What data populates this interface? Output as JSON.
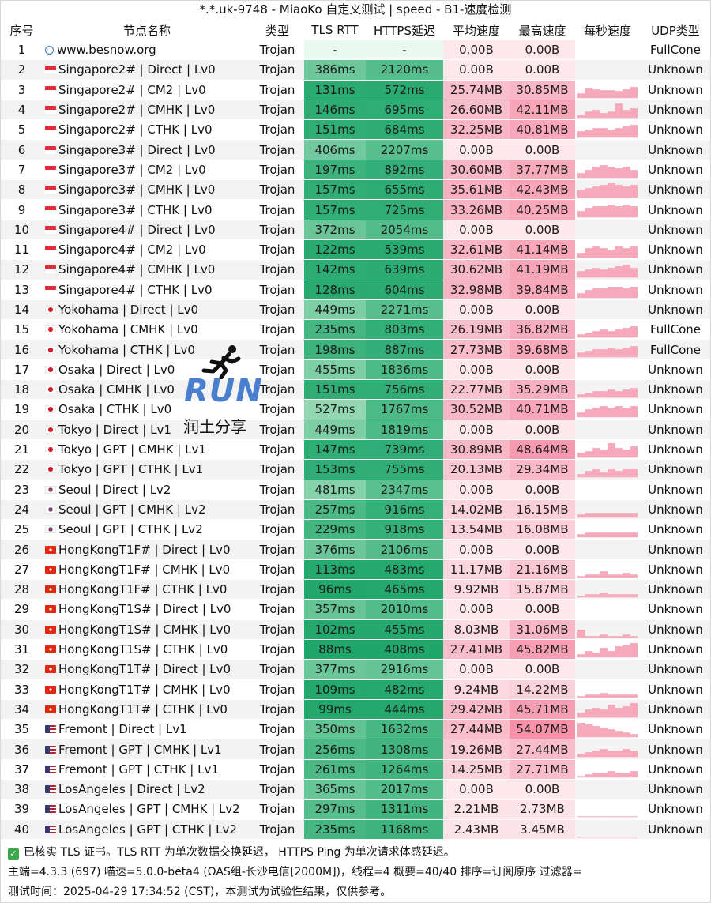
{
  "title": "*.*.uk-9748 - MiaoKo 自定义测试 | speed - B1-速度检测",
  "headers": [
    "序号",
    "节点名称",
    "类型",
    "TLS RTT",
    "HTTPS延迟",
    "平均速度",
    "最高速度",
    "每秒速度",
    "UDP类型"
  ],
  "icons": {
    "globe": "globe-icon",
    "check": "check-icon",
    "runner": "runner-icon"
  },
  "colors": {
    "green_light": "#9fdcba",
    "green_dark": "#1fa66b",
    "pink_light": "#fde8ec",
    "pink_dark": "#f592a8",
    "spark": "#f6a9ba"
  },
  "rows": [
    {
      "no": "1",
      "flag": "globe",
      "name": "www.besnow.org",
      "type": "Trojan",
      "rtt": "-",
      "https": "-",
      "avg": "0.00B",
      "max": "0.00B",
      "udp": "FullCone",
      "spark": []
    },
    {
      "no": "2",
      "flag": "sg",
      "name": "Singapore2# | Direct | Lv0",
      "type": "Trojan",
      "rtt": "386ms",
      "https": "2120ms",
      "avg": "0.00B",
      "max": "0.00B",
      "udp": "Unknown",
      "spark": []
    },
    {
      "no": "3",
      "flag": "sg",
      "name": "Singapore2# | CM2 | Lv0",
      "type": "Trojan",
      "rtt": "131ms",
      "https": "572ms",
      "avg": "25.74MB",
      "max": "30.85MB",
      "udp": "Unknown",
      "spark": [
        0.3,
        0.6,
        0.55,
        0.5,
        0.5,
        0.45,
        0.55,
        0.7
      ]
    },
    {
      "no": "4",
      "flag": "sg",
      "name": "Singapore2# | CMHK | Lv0",
      "type": "Trojan",
      "rtt": "146ms",
      "https": "695ms",
      "avg": "26.60MB",
      "max": "42.11MB",
      "udp": "Unknown",
      "spark": [
        0.2,
        0.4,
        0.5,
        0.3,
        0.4,
        0.9,
        0.5,
        0.6
      ]
    },
    {
      "no": "5",
      "flag": "sg",
      "name": "Singapore2# | CTHK | Lv0",
      "type": "Trojan",
      "rtt": "151ms",
      "https": "684ms",
      "avg": "32.25MB",
      "max": "40.81MB",
      "udp": "Unknown",
      "spark": [
        0.4,
        0.5,
        0.6,
        0.6,
        0.5,
        0.6,
        0.7,
        0.8
      ]
    },
    {
      "no": "6",
      "flag": "sg",
      "name": "Singapore3# | Direct | Lv0",
      "type": "Trojan",
      "rtt": "406ms",
      "https": "2207ms",
      "avg": "0.00B",
      "max": "0.00B",
      "udp": "Unknown",
      "spark": []
    },
    {
      "no": "7",
      "flag": "sg",
      "name": "Singapore3# | CM2 | Lv0",
      "type": "Trojan",
      "rtt": "197ms",
      "https": "892ms",
      "avg": "30.60MB",
      "max": "37.77MB",
      "udp": "Unknown",
      "spark": [
        0.3,
        0.5,
        0.7,
        0.8,
        0.7,
        0.6,
        0.7,
        0.5
      ]
    },
    {
      "no": "8",
      "flag": "sg",
      "name": "Singapore3# | CMHK | Lv0",
      "type": "Trojan",
      "rtt": "157ms",
      "https": "655ms",
      "avg": "35.61MB",
      "max": "42.43MB",
      "udp": "Unknown",
      "spark": [
        0.5,
        0.6,
        0.7,
        0.8,
        0.9,
        0.8,
        0.7,
        0.8
      ]
    },
    {
      "no": "9",
      "flag": "sg",
      "name": "Singapore3# | CTHK | Lv0",
      "type": "Trojan",
      "rtt": "157ms",
      "https": "725ms",
      "avg": "33.26MB",
      "max": "40.25MB",
      "udp": "Unknown",
      "spark": [
        0.4,
        0.6,
        0.7,
        0.7,
        0.8,
        0.7,
        0.8,
        0.7
      ]
    },
    {
      "no": "10",
      "flag": "sg",
      "name": "Singapore4# | Direct | Lv0",
      "type": "Trojan",
      "rtt": "372ms",
      "https": "2054ms",
      "avg": "0.00B",
      "max": "0.00B",
      "udp": "Unknown",
      "spark": []
    },
    {
      "no": "11",
      "flag": "sg",
      "name": "Singapore4# | CM2 | Lv0",
      "type": "Trojan",
      "rtt": "122ms",
      "https": "539ms",
      "avg": "32.61MB",
      "max": "41.14MB",
      "udp": "Unknown",
      "spark": [
        0.3,
        0.6,
        0.7,
        0.6,
        0.5,
        0.7,
        0.6,
        0.7
      ]
    },
    {
      "no": "12",
      "flag": "sg",
      "name": "Singapore4# | CMHK | Lv0",
      "type": "Trojan",
      "rtt": "142ms",
      "https": "639ms",
      "avg": "30.62MB",
      "max": "41.19MB",
      "udp": "Unknown",
      "spark": [
        0.4,
        0.5,
        0.6,
        0.5,
        0.6,
        0.7,
        0.8,
        0.6
      ]
    },
    {
      "no": "13",
      "flag": "sg",
      "name": "Singapore4# | CTHK | Lv0",
      "type": "Trojan",
      "rtt": "128ms",
      "https": "604ms",
      "avg": "32.98MB",
      "max": "39.84MB",
      "udp": "Unknown",
      "spark": [
        0.3,
        0.5,
        0.6,
        0.6,
        0.7,
        0.7,
        0.6,
        0.7
      ]
    },
    {
      "no": "14",
      "flag": "jp",
      "name": "Yokohama | Direct | Lv0",
      "type": "Trojan",
      "rtt": "449ms",
      "https": "2271ms",
      "avg": "0.00B",
      "max": "0.00B",
      "udp": "Unknown",
      "spark": []
    },
    {
      "no": "15",
      "flag": "jp",
      "name": "Yokohama | CMHK | Lv0",
      "type": "Trojan",
      "rtt": "235ms",
      "https": "803ms",
      "avg": "26.19MB",
      "max": "36.82MB",
      "udp": "FullCone",
      "spark": [
        0.2,
        0.3,
        0.4,
        0.5,
        0.4,
        0.5,
        0.6,
        0.7
      ]
    },
    {
      "no": "16",
      "flag": "jp",
      "name": "Yokohama | CTHK | Lv0",
      "type": "Trojan",
      "rtt": "198ms",
      "https": "887ms",
      "avg": "27.73MB",
      "max": "39.68MB",
      "udp": "FullCone",
      "spark": [
        0.3,
        0.4,
        0.5,
        0.5,
        0.6,
        0.5,
        0.6,
        0.7
      ]
    },
    {
      "no": "17",
      "flag": "jp",
      "name": "Osaka | Direct | Lv0",
      "type": "Trojan",
      "rtt": "455ms",
      "https": "1836ms",
      "avg": "0.00B",
      "max": "0.00B",
      "udp": "Unknown",
      "spark": []
    },
    {
      "no": "18",
      "flag": "jp",
      "name": "Osaka | CMHK | Lv0",
      "type": "Trojan",
      "rtt": "151ms",
      "https": "756ms",
      "avg": "22.77MB",
      "max": "35.29MB",
      "udp": "Unknown",
      "spark": [
        0.2,
        0.3,
        0.4,
        0.4,
        0.5,
        0.4,
        0.5,
        0.6
      ]
    },
    {
      "no": "19",
      "flag": "jp",
      "name": "Osaka | CTHK | Lv0",
      "type": "Trojan",
      "rtt": "527ms",
      "https": "1767ms",
      "avg": "30.52MB",
      "max": "40.71MB",
      "udp": "Unknown",
      "spark": [
        0.3,
        0.5,
        0.6,
        0.7,
        0.6,
        0.7,
        0.6,
        0.7
      ]
    },
    {
      "no": "20",
      "flag": "jp",
      "name": "Tokyo | Direct | Lv1",
      "type": "Trojan",
      "rtt": "449ms",
      "https": "1819ms",
      "avg": "0.00B",
      "max": "0.00B",
      "udp": "Unknown",
      "spark": []
    },
    {
      "no": "21",
      "flag": "jp",
      "name": "Tokyo | GPT | CMHK | Lv1",
      "type": "Trojan",
      "rtt": "147ms",
      "https": "739ms",
      "avg": "30.89MB",
      "max": "48.64MB",
      "udp": "Unknown",
      "spark": [
        0.3,
        0.4,
        0.6,
        0.5,
        0.9,
        0.6,
        0.5,
        0.7
      ]
    },
    {
      "no": "22",
      "flag": "jp",
      "name": "Tokyo | GPT | CTHK | Lv1",
      "type": "Trojan",
      "rtt": "153ms",
      "https": "755ms",
      "avg": "20.13MB",
      "max": "29.34MB",
      "udp": "Unknown",
      "spark": [
        0.2,
        0.4,
        0.5,
        0.3,
        0.5,
        0.4,
        0.5,
        0.5
      ]
    },
    {
      "no": "23",
      "flag": "kr",
      "name": "Seoul | Direct | Lv2",
      "type": "Trojan",
      "rtt": "481ms",
      "https": "2347ms",
      "avg": "0.00B",
      "max": "0.00B",
      "udp": "Unknown",
      "spark": []
    },
    {
      "no": "24",
      "flag": "kr",
      "name": "Seoul | GPT | CMHK | Lv2",
      "type": "Trojan",
      "rtt": "257ms",
      "https": "916ms",
      "avg": "14.02MB",
      "max": "16.15MB",
      "udp": "Unknown",
      "spark": [
        0.2,
        0.3,
        0.3,
        0.3,
        0.3,
        0.3,
        0.3,
        0.3
      ]
    },
    {
      "no": "25",
      "flag": "kr",
      "name": "Seoul | GPT | CTHK | Lv2",
      "type": "Trojan",
      "rtt": "229ms",
      "https": "918ms",
      "avg": "13.54MB",
      "max": "16.08MB",
      "udp": "Unknown",
      "spark": [
        0.2,
        0.3,
        0.3,
        0.3,
        0.3,
        0.3,
        0.3,
        0.3
      ]
    },
    {
      "no": "26",
      "flag": "hk",
      "name": "HongKongT1F# | Direct | Lv0",
      "type": "Trojan",
      "rtt": "376ms",
      "https": "2106ms",
      "avg": "0.00B",
      "max": "0.00B",
      "udp": "Unknown",
      "spark": []
    },
    {
      "no": "27",
      "flag": "hk",
      "name": "HongKongT1F# | CMHK | Lv0",
      "type": "Trojan",
      "rtt": "113ms",
      "https": "483ms",
      "avg": "11.17MB",
      "max": "21.16MB",
      "udp": "Unknown",
      "spark": [
        0.1,
        0.2,
        0.2,
        0.4,
        0.2,
        0.2,
        0.3,
        0.2
      ]
    },
    {
      "no": "28",
      "flag": "hk",
      "name": "HongKongT1F# | CTHK | Lv0",
      "type": "Trojan",
      "rtt": "96ms",
      "https": "465ms",
      "avg": "9.92MB",
      "max": "15.87MB",
      "udp": "Unknown",
      "spark": [
        0.1,
        0.2,
        0.2,
        0.3,
        0.2,
        0.2,
        0.2,
        0.2
      ]
    },
    {
      "no": "29",
      "flag": "hk",
      "name": "HongKongT1S# | Direct | Lv0",
      "type": "Trojan",
      "rtt": "357ms",
      "https": "2010ms",
      "avg": "0.00B",
      "max": "0.00B",
      "udp": "Unknown",
      "spark": []
    },
    {
      "no": "30",
      "flag": "hk",
      "name": "HongKongT1S# | CMHK | Lv0",
      "type": "Trojan",
      "rtt": "102ms",
      "https": "455ms",
      "avg": "8.03MB",
      "max": "31.06MB",
      "udp": "Unknown",
      "spark": [
        0.5,
        0.1,
        0.1,
        0.2,
        0.1,
        0.1,
        0.2,
        0.1
      ]
    },
    {
      "no": "31",
      "flag": "hk",
      "name": "HongKongT1S# | CTHK | Lv0",
      "type": "Trojan",
      "rtt": "88ms",
      "https": "408ms",
      "avg": "27.41MB",
      "max": "45.82MB",
      "udp": "Unknown",
      "spark": [
        0.2,
        0.4,
        0.3,
        0.6,
        0.4,
        0.7,
        0.8,
        0.9
      ]
    },
    {
      "no": "32",
      "flag": "hk",
      "name": "HongKongT1T# | Direct | Lv0",
      "type": "Trojan",
      "rtt": "377ms",
      "https": "2916ms",
      "avg": "0.00B",
      "max": "0.00B",
      "udp": "Unknown",
      "spark": []
    },
    {
      "no": "33",
      "flag": "hk",
      "name": "HongKongT1T# | CMHK | Lv0",
      "type": "Trojan",
      "rtt": "109ms",
      "https": "482ms",
      "avg": "9.24MB",
      "max": "14.22MB",
      "udp": "Unknown",
      "spark": [
        0.1,
        0.2,
        0.2,
        0.3,
        0.2,
        0.2,
        0.2,
        0.2
      ]
    },
    {
      "no": "34",
      "flag": "hk",
      "name": "HongKongT1T# | CTHK | Lv0",
      "type": "Trojan",
      "rtt": "99ms",
      "https": "444ms",
      "avg": "29.42MB",
      "max": "45.71MB",
      "udp": "Unknown",
      "spark": [
        0.3,
        0.5,
        0.6,
        0.5,
        0.8,
        0.6,
        0.7,
        0.9
      ]
    },
    {
      "no": "35",
      "flag": "us",
      "name": "Fremont | Direct | Lv1",
      "type": "Trojan",
      "rtt": "350ms",
      "https": "1632ms",
      "avg": "27.44MB",
      "max": "54.07MB",
      "udp": "Unknown",
      "spark": [
        0.9,
        0.8,
        0.7,
        0.6,
        0.5,
        0.4,
        0.3,
        0.2
      ]
    },
    {
      "no": "36",
      "flag": "us",
      "name": "Fremont | GPT | CMHK | Lv1",
      "type": "Trojan",
      "rtt": "256ms",
      "https": "1308ms",
      "avg": "19.26MB",
      "max": "27.44MB",
      "udp": "Unknown",
      "spark": [
        0.2,
        0.3,
        0.4,
        0.5,
        0.4,
        0.4,
        0.5,
        0.4
      ]
    },
    {
      "no": "37",
      "flag": "us",
      "name": "Fremont | GPT | CTHK | Lv1",
      "type": "Trojan",
      "rtt": "261ms",
      "https": "1264ms",
      "avg": "14.25MB",
      "max": "27.71MB",
      "udp": "Unknown",
      "spark": [
        0.1,
        0.2,
        0.3,
        0.3,
        0.4,
        0.3,
        0.3,
        0.4
      ]
    },
    {
      "no": "38",
      "flag": "us",
      "name": "LosAngeles | Direct | Lv2",
      "type": "Trojan",
      "rtt": "365ms",
      "https": "2017ms",
      "avg": "0.00B",
      "max": "0.00B",
      "udp": "Unknown",
      "spark": []
    },
    {
      "no": "39",
      "flag": "us",
      "name": "LosAngeles | GPT | CMHK | Lv2",
      "type": "Trojan",
      "rtt": "297ms",
      "https": "1311ms",
      "avg": "2.21MB",
      "max": "2.73MB",
      "udp": "Unknown",
      "spark": [
        0.05,
        0.05,
        0.05,
        0.05,
        0.05,
        0.05,
        0.05,
        0.05
      ]
    },
    {
      "no": "40",
      "flag": "us",
      "name": "LosAngeles | GPT | CTHK | Lv2",
      "type": "Trojan",
      "rtt": "235ms",
      "https": "1168ms",
      "avg": "2.43MB",
      "max": "3.45MB",
      "udp": "Unknown",
      "spark": [
        0.05,
        0.05,
        0.05,
        0.05,
        0.05,
        0.05,
        0.05,
        0.05
      ]
    }
  ],
  "footer": {
    "line1": "已核实 TLS 证书。TLS RTT 为单次数据交换延迟， HTTPS Ping 为单次请求体感延迟。",
    "line2": "主端=4.3.3 (697) 喵速=5.0.0-beta4 (ΩAS组-长沙电信[2000M])，线程=4 概要=40/40 排序=订阅原序 过滤器=",
    "line3": "测试时间：2025-04-29 17:34:52 (CST)，本测试为试验性结果，仅供参考。"
  },
  "watermark": {
    "run": "RUN",
    "cn": "润土分享"
  }
}
